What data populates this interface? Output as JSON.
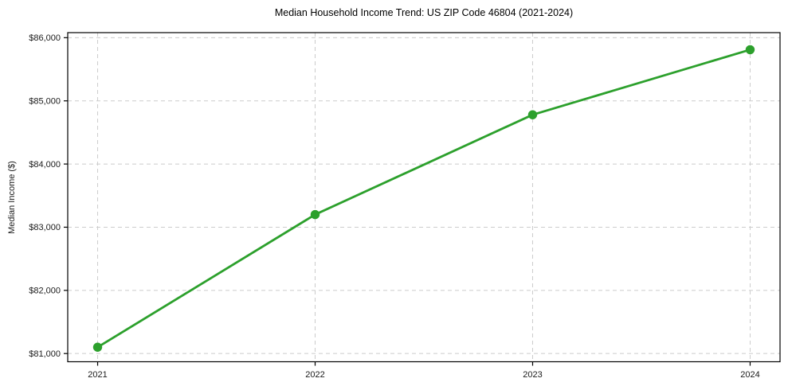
{
  "chart_data": {
    "type": "line",
    "title": "Median Household Income Trend: US ZIP Code 46804 (2021-2024)",
    "ylabel": "Median Income ($)",
    "xlabel": "",
    "x": [
      2021,
      2022,
      2023,
      2024
    ],
    "x_tick_labels": [
      "2021",
      "2022",
      "2023",
      "2024"
    ],
    "series": [
      {
        "name": "Median Income ($)",
        "values": [
          81100,
          83200,
          84780,
          85810
        ],
        "color": "#2ca02c",
        "marker": "circle"
      }
    ],
    "y_ticks": [
      81000,
      82000,
      83000,
      84000,
      85000,
      86000
    ],
    "y_tick_labels": [
      "$81,000",
      "$82,000",
      "$83,000",
      "$84,000",
      "$85,000",
      "$86,000"
    ],
    "xlim": [
      2020.8625,
      2024.1375
    ],
    "ylim": [
      80870,
      86080
    ],
    "grid": {
      "style": "dashed",
      "color": "#cccccc",
      "axes": "both"
    },
    "legend": "none",
    "axis_color": "#000000",
    "tick_label_color": "#1a1a1a",
    "background_color": "#ffffff"
  }
}
